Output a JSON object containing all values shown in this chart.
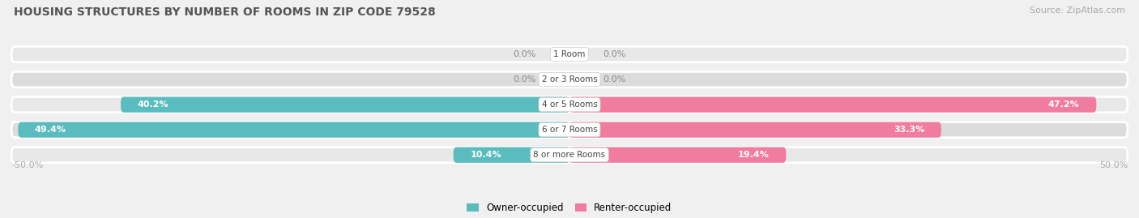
{
  "title": "HOUSING STRUCTURES BY NUMBER OF ROOMS IN ZIP CODE 79528",
  "source": "Source: ZipAtlas.com",
  "categories": [
    "1 Room",
    "2 or 3 Rooms",
    "4 or 5 Rooms",
    "6 or 7 Rooms",
    "8 or more Rooms"
  ],
  "owner_values": [
    0.0,
    0.0,
    40.2,
    49.4,
    10.4
  ],
  "renter_values": [
    0.0,
    0.0,
    47.2,
    33.3,
    19.4
  ],
  "owner_color": "#5abcbe",
  "renter_color": "#f07ca0",
  "label_color_dark": "#888888",
  "label_color_white": "#ffffff",
  "bg_color": "#f0f0f0",
  "bar_bg_even": "#e8e8e8",
  "bar_bg_odd": "#dcdcdc",
  "axis_max": 50.0,
  "bar_height": 0.62,
  "legend_owner": "Owner-occupied",
  "legend_renter": "Renter-occupied"
}
